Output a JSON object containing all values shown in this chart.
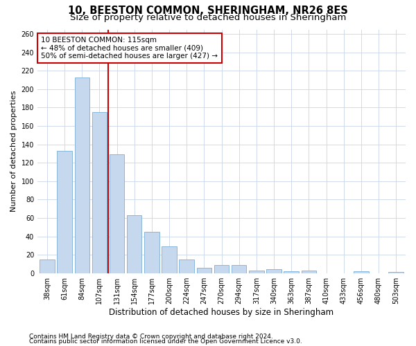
{
  "title": "10, BEESTON COMMON, SHERINGHAM, NR26 8ES",
  "subtitle": "Size of property relative to detached houses in Sheringham",
  "xlabel": "Distribution of detached houses by size in Sheringham",
  "ylabel": "Number of detached properties",
  "categories": [
    "38sqm",
    "61sqm",
    "84sqm",
    "107sqm",
    "131sqm",
    "154sqm",
    "177sqm",
    "200sqm",
    "224sqm",
    "247sqm",
    "270sqm",
    "294sqm",
    "317sqm",
    "340sqm",
    "363sqm",
    "387sqm",
    "410sqm",
    "433sqm",
    "456sqm",
    "480sqm",
    "503sqm"
  ],
  "values": [
    15,
    133,
    213,
    175,
    129,
    63,
    45,
    29,
    15,
    6,
    9,
    9,
    3,
    4,
    2,
    3,
    0,
    0,
    2,
    0,
    1
  ],
  "bar_color": "#c5d8ed",
  "bar_edge_color": "#7bafd4",
  "vline_x": 3.5,
  "vline_color": "#cc0000",
  "annotation_text": "10 BEESTON COMMON: 115sqm\n← 48% of detached houses are smaller (409)\n50% of semi-detached houses are larger (427) →",
  "annotation_box_color": "#ffffff",
  "annotation_box_edge_color": "#cc0000",
  "ylim": [
    0,
    265
  ],
  "yticks": [
    0,
    20,
    40,
    60,
    80,
    100,
    120,
    140,
    160,
    180,
    200,
    220,
    240,
    260
  ],
  "background_color": "#ffffff",
  "grid_color": "#c8d4e8",
  "footer_line1": "Contains HM Land Registry data © Crown copyright and database right 2024.",
  "footer_line2": "Contains public sector information licensed under the Open Government Licence v3.0.",
  "title_fontsize": 10.5,
  "subtitle_fontsize": 9.5,
  "xlabel_fontsize": 8.5,
  "ylabel_fontsize": 8,
  "tick_fontsize": 7,
  "annotation_fontsize": 7.5,
  "footer_fontsize": 6.5
}
